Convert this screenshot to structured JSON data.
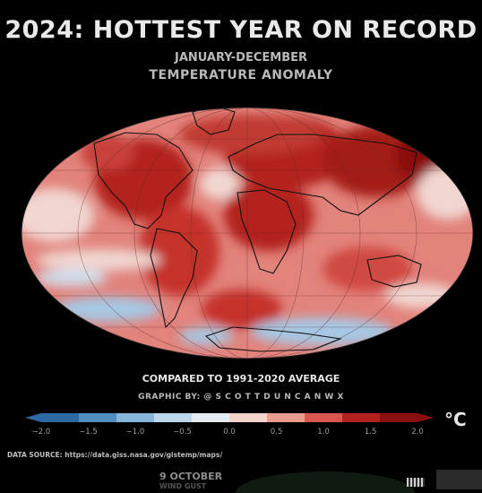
{
  "title": "2024: HOTTEST YEAR ON RECORD",
  "subtitle_period": "JANUARY-DECEMBER",
  "subtitle_metric": "TEMPERATURE ANOMALY",
  "baseline_note": "COMPARED TO 1991-2020 AVERAGE",
  "credit": "GRAPHIC BY: @ S C O T T D U N C A N W X",
  "data_source": "DATA SOURCE: https://data.giss.nasa.gov/gistemp/maps/",
  "colorbar": {
    "unit": "°C",
    "ticks": [
      "−2.0",
      "−1.5",
      "−1.0",
      "−0.5",
      "0.0",
      "0.5",
      "1.0",
      "1.5",
      "2.0"
    ],
    "colors": [
      "#2b6aa3",
      "#4f8fc0",
      "#86b5d9",
      "#bcd6ea",
      "#e4ecf3",
      "#f1d5cd",
      "#ec9b8f",
      "#d9564d",
      "#b3211f",
      "#8a1010"
    ]
  },
  "below_caption": "9 OCTOBER",
  "below_caption_2": "WIND GUST",
  "map_palette": {
    "base": "#e2837c",
    "hot": "#b3211f",
    "very_hot": "#8a1010",
    "cool": "#a6c8e4",
    "neutral": "#f1d6d0",
    "coast": "#111111"
  }
}
